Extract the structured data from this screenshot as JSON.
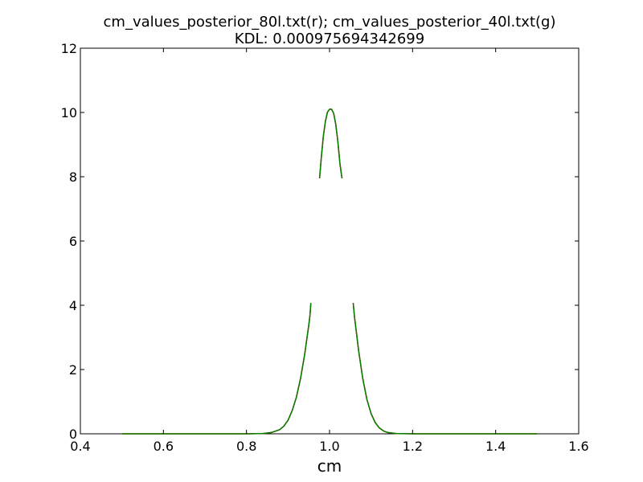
{
  "chart_data": {
    "type": "line",
    "title": "cm_values_posterior_80l.txt(r); cm_values_posterior_40l.txt(g)",
    "subtitle": "KDL: 0.000975694342699",
    "xlabel": "cm",
    "ylabel": "",
    "xlim": [
      0.4,
      1.6
    ],
    "ylim": [
      0,
      12
    ],
    "xticks": [
      "0.4",
      "0.6",
      "0.8",
      "1.0",
      "1.2",
      "1.4",
      "1.6"
    ],
    "yticks": [
      "0",
      "2",
      "4",
      "6",
      "8",
      "10",
      "12"
    ],
    "grid": false,
    "legend": "none",
    "series": [
      {
        "color": "#ff0000",
        "segments": [
          [
            [
              0.5,
              0.0
            ],
            [
              0.7,
              0.0
            ],
            [
              0.8,
              0.0
            ],
            [
              0.84,
              0.01
            ],
            [
              0.86,
              0.04
            ],
            [
              0.88,
              0.13
            ],
            [
              0.89,
              0.24
            ],
            [
              0.9,
              0.42
            ],
            [
              0.91,
              0.72
            ],
            [
              0.92,
              1.13
            ],
            [
              0.93,
              1.71
            ],
            [
              0.94,
              2.46
            ],
            [
              0.95,
              3.38
            ],
            [
              0.953,
              3.7
            ],
            [
              0.955,
              4.07
            ]
          ],
          [
            [
              0.976,
              7.95
            ],
            [
              0.98,
              8.57
            ],
            [
              0.985,
              9.25
            ],
            [
              0.99,
              9.72
            ],
            [
              0.995,
              10.01
            ],
            [
              1.0,
              10.1
            ],
            [
              1.005,
              10.1
            ],
            [
              1.01,
              9.97
            ],
            [
              1.015,
              9.63
            ],
            [
              1.02,
              9.1
            ],
            [
              1.025,
              8.41
            ],
            [
              1.03,
              7.95
            ]
          ],
          [
            [
              1.057,
              4.07
            ],
            [
              1.06,
              3.65
            ],
            [
              1.07,
              2.59
            ],
            [
              1.08,
              1.72
            ],
            [
              1.09,
              1.07
            ],
            [
              1.1,
              0.63
            ],
            [
              1.11,
              0.35
            ],
            [
              1.12,
              0.18
            ],
            [
              1.13,
              0.09
            ],
            [
              1.14,
              0.04
            ],
            [
              1.16,
              0.01
            ],
            [
              1.2,
              0.0
            ],
            [
              1.3,
              0.0
            ],
            [
              1.4,
              0.0
            ],
            [
              1.5,
              0.0
            ]
          ]
        ]
      },
      {
        "color": "#008000",
        "segments": [
          [
            [
              0.5,
              0.0
            ],
            [
              0.7,
              0.0
            ],
            [
              0.8,
              0.0
            ],
            [
              0.84,
              0.01
            ],
            [
              0.86,
              0.04
            ],
            [
              0.88,
              0.13
            ],
            [
              0.89,
              0.24
            ],
            [
              0.9,
              0.42
            ],
            [
              0.91,
              0.72
            ],
            [
              0.92,
              1.13
            ],
            [
              0.93,
              1.71
            ],
            [
              0.94,
              2.46
            ],
            [
              0.95,
              3.38
            ],
            [
              0.953,
              3.7
            ],
            [
              0.955,
              4.07
            ]
          ],
          [
            [
              0.976,
              7.95
            ],
            [
              0.98,
              8.57
            ],
            [
              0.985,
              9.25
            ],
            [
              0.99,
              9.72
            ],
            [
              0.995,
              10.01
            ],
            [
              1.0,
              10.1
            ],
            [
              1.005,
              10.1
            ],
            [
              1.01,
              9.97
            ],
            [
              1.015,
              9.63
            ],
            [
              1.02,
              9.1
            ],
            [
              1.025,
              8.41
            ],
            [
              1.03,
              7.95
            ]
          ],
          [
            [
              1.057,
              4.07
            ],
            [
              1.06,
              3.65
            ],
            [
              1.07,
              2.59
            ],
            [
              1.08,
              1.72
            ],
            [
              1.09,
              1.07
            ],
            [
              1.1,
              0.63
            ],
            [
              1.11,
              0.35
            ],
            [
              1.12,
              0.18
            ],
            [
              1.13,
              0.09
            ],
            [
              1.14,
              0.04
            ],
            [
              1.16,
              0.01
            ],
            [
              1.2,
              0.0
            ],
            [
              1.3,
              0.0
            ],
            [
              1.4,
              0.0
            ],
            [
              1.5,
              0.0
            ]
          ]
        ]
      }
    ]
  }
}
